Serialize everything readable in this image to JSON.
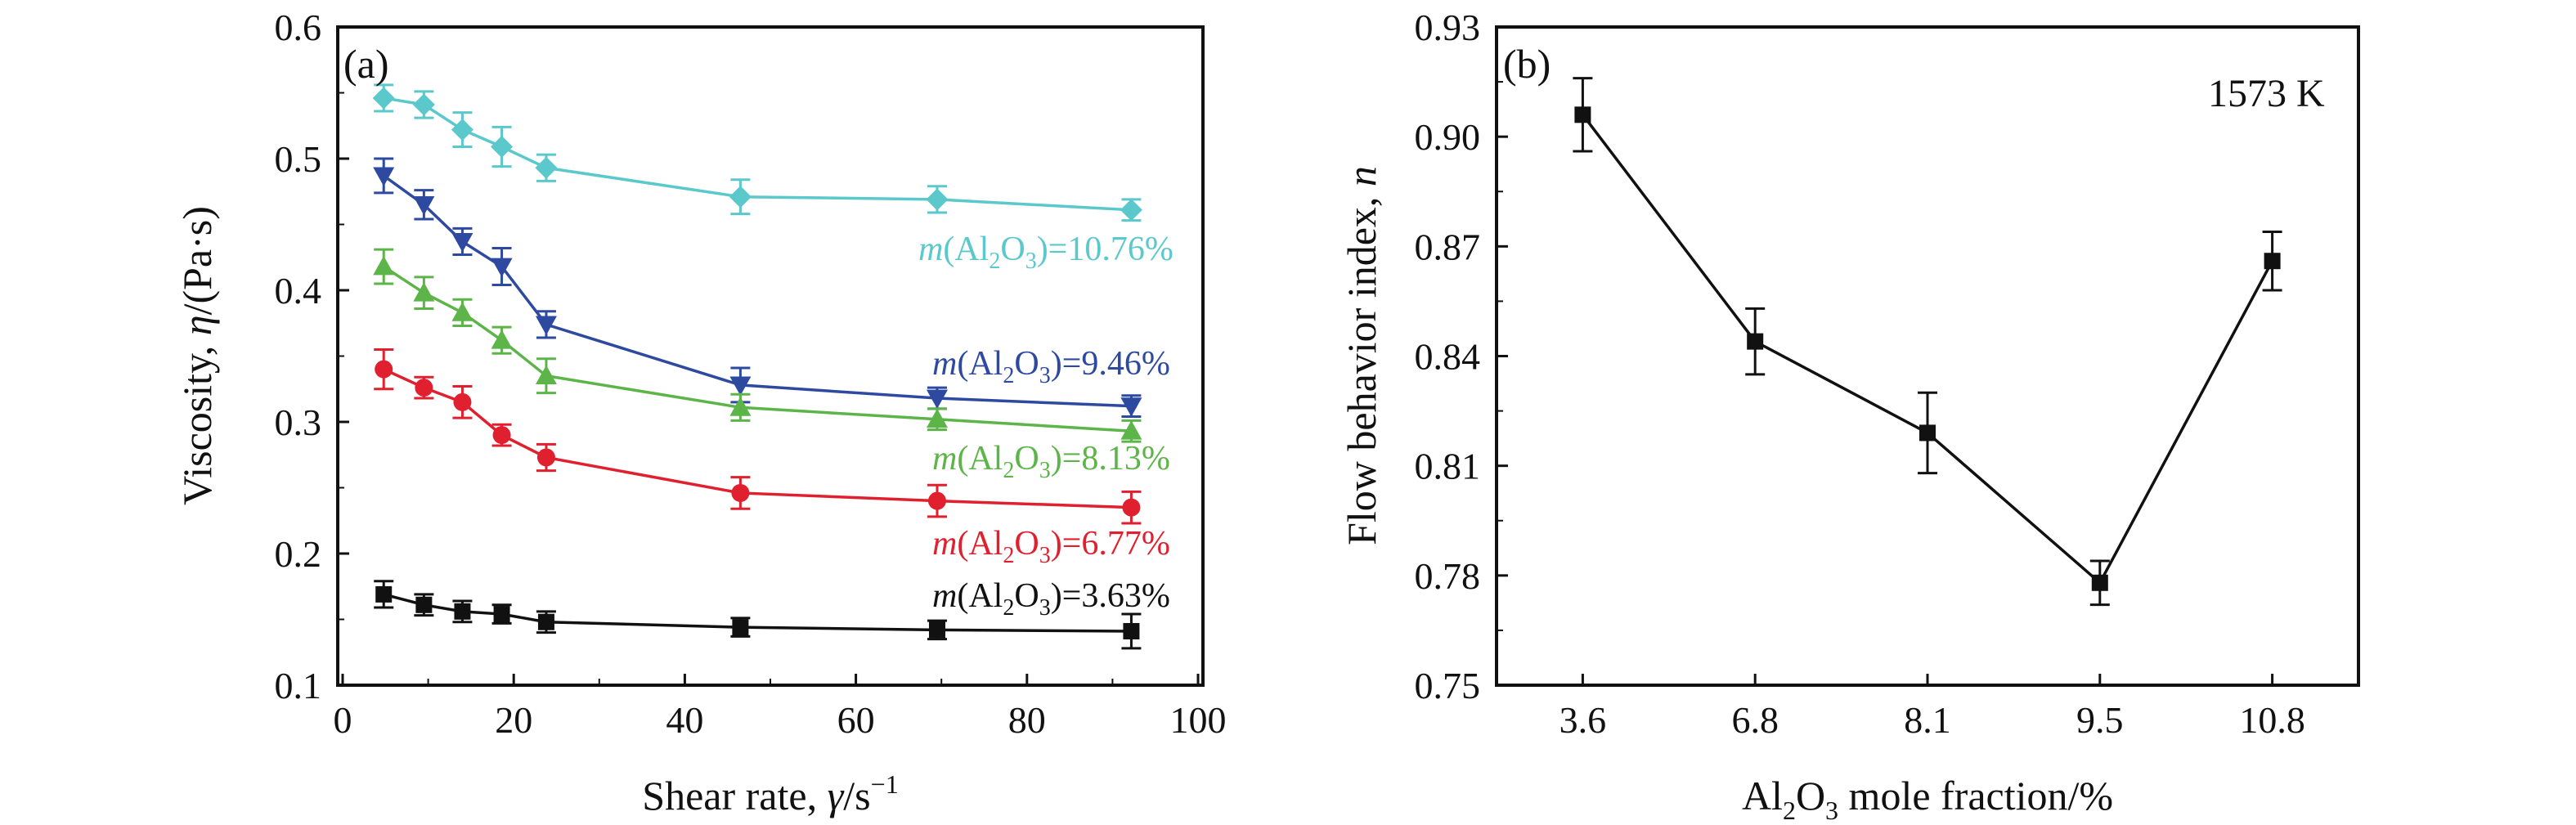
{
  "chart_data": [
    {
      "panel_label": "(a)",
      "type": "line",
      "x_axis": {
        "title_prefix": "Shear rate, ",
        "title_symbol": "γ",
        "title_suffix": "/s",
        "title_sup": "−1",
        "range": [
          0,
          100
        ],
        "ticks": [
          0,
          20,
          40,
          60,
          80,
          100
        ],
        "tick_labels": [
          "0",
          "20",
          "40",
          "60",
          "80",
          "100"
        ]
      },
      "y_axis": {
        "title_prefix": "Viscosity, ",
        "title_symbol": "η",
        "title_suffix": "/(Pa·s)",
        "range": [
          0.1,
          0.6
        ],
        "ticks": [
          0.1,
          0.2,
          0.3,
          0.4,
          0.5,
          0.6
        ],
        "tick_labels": [
          "0.1",
          "0.2",
          "0.3",
          "0.4",
          "0.5",
          "0.6"
        ]
      },
      "grid": false,
      "series": [
        {
          "name": "m(Al2O3)=10.76%",
          "label_parts": {
            "m": "m",
            "a": "(Al",
            "s1": "2",
            "b": "O",
            "s2": "3",
            "c": ")=10.76%"
          },
          "color": "#5bc8cc",
          "marker": "diamond",
          "x": [
            4.8,
            9.5,
            14,
            18.6,
            23.8,
            46.5,
            69.5,
            92.2
          ],
          "y": [
            0.546,
            0.541,
            0.522,
            0.509,
            0.493,
            0.471,
            0.469,
            0.461
          ],
          "err": [
            0.01,
            0.01,
            0.013,
            0.015,
            0.01,
            0.013,
            0.01,
            0.008
          ]
        },
        {
          "name": "m(Al2O3)=9.46%",
          "label_parts": {
            "m": "m",
            "a": "(Al",
            "s1": "2",
            "b": "O",
            "s2": "3",
            "c": ")=9.46%"
          },
          "color": "#2e4aa0",
          "marker": "triangle-down",
          "x": [
            4.8,
            9.5,
            14,
            18.6,
            23.8,
            46.5,
            69.5,
            92.2
          ],
          "y": [
            0.487,
            0.465,
            0.437,
            0.418,
            0.374,
            0.328,
            0.318,
            0.312
          ],
          "err": [
            0.013,
            0.011,
            0.01,
            0.014,
            0.01,
            0.013,
            0.008,
            0.008
          ]
        },
        {
          "name": "m(Al2O3)=8.13%",
          "label_parts": {
            "m": "m",
            "a": "(Al",
            "s1": "2",
            "b": "O",
            "s2": "3",
            "c": ")=8.13%"
          },
          "color": "#5db54a",
          "marker": "triangle-up",
          "x": [
            4.8,
            9.5,
            14,
            18.6,
            23.8,
            46.5,
            69.5,
            92.2
          ],
          "y": [
            0.418,
            0.398,
            0.383,
            0.362,
            0.335,
            0.311,
            0.302,
            0.293
          ],
          "err": [
            0.013,
            0.012,
            0.01,
            0.01,
            0.013,
            0.01,
            0.008,
            0.008
          ]
        },
        {
          "name": "m(Al2O3)=6.77%",
          "label_parts": {
            "m": "m",
            "a": "(Al",
            "s1": "2",
            "b": "O",
            "s2": "3",
            "c": ")=6.77%"
          },
          "color": "#e0202e",
          "marker": "circle",
          "x": [
            4.8,
            9.5,
            14,
            18.6,
            23.8,
            46.5,
            69.5,
            92.2
          ],
          "y": [
            0.34,
            0.326,
            0.315,
            0.29,
            0.273,
            0.246,
            0.24,
            0.235
          ],
          "err": [
            0.015,
            0.008,
            0.012,
            0.008,
            0.01,
            0.012,
            0.012,
            0.012
          ]
        },
        {
          "name": "m(Al2O3)=3.63%",
          "label_parts": {
            "m": "m",
            "a": "(Al",
            "s1": "2",
            "b": "O",
            "s2": "3",
            "c": ")=3.63%"
          },
          "color": "#111111",
          "marker": "square",
          "x": [
            4.8,
            9.5,
            14,
            18.6,
            23.8,
            46.5,
            69.5,
            92.2
          ],
          "y": [
            0.169,
            0.161,
            0.156,
            0.154,
            0.148,
            0.144,
            0.142,
            0.141
          ],
          "err": [
            0.01,
            0.008,
            0.008,
            0.007,
            0.008,
            0.007,
            0.007,
            0.013
          ]
        }
      ]
    },
    {
      "panel_label": "(b)",
      "type": "line",
      "annotation": "1573 K",
      "x_axis": {
        "title_a": "Al",
        "title_s1": "2",
        "title_b": "O",
        "title_s2": "3",
        "title_c": " mole fraction/%",
        "categories": [
          "3.6",
          "6.8",
          "8.1",
          "9.5",
          "10.8"
        ]
      },
      "y_axis": {
        "title_prefix": "Flow behavior index, ",
        "title_symbol": "n",
        "range": [
          0.75,
          0.93
        ],
        "ticks": [
          0.75,
          0.78,
          0.81,
          0.84,
          0.87,
          0.9,
          0.93
        ],
        "tick_labels": [
          "0.75",
          "0.78",
          "0.81",
          "0.84",
          "0.87",
          "0.90",
          "0.93"
        ]
      },
      "grid": false,
      "series": [
        {
          "color": "#111111",
          "marker": "square",
          "values": [
            0.906,
            0.844,
            0.819,
            0.778,
            0.866
          ],
          "err": [
            0.01,
            0.009,
            0.011,
            0.006,
            0.008
          ]
        }
      ]
    }
  ]
}
